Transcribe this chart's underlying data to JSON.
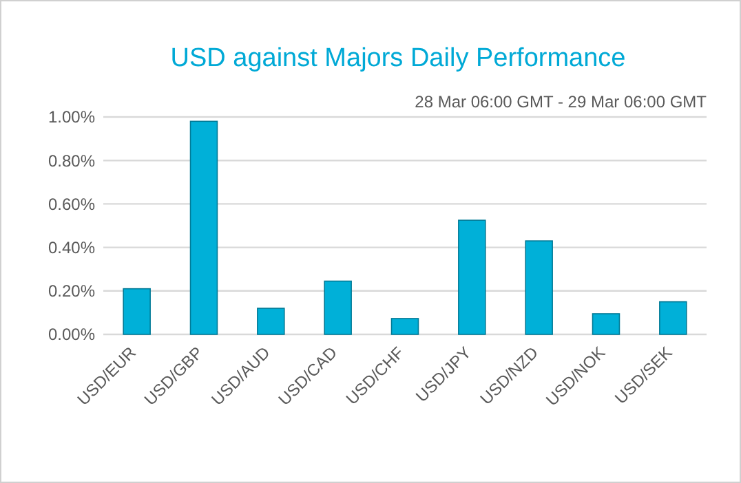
{
  "chart_data": {
    "type": "bar",
    "title": "USD against Majors Daily Performance",
    "subtitle": "28 Mar 06:00 GMT - 29 Mar 06:00 GMT",
    "categories": [
      "USD/EUR",
      "USD/GBP",
      "USD/AUD",
      "USD/CAD",
      "USD/CHF",
      "USD/JPY",
      "USD/NZD",
      "USD/NOK",
      "USD/SEK"
    ],
    "values": [
      0.21,
      0.98,
      0.12,
      0.245,
      0.073,
      0.525,
      0.43,
      0.095,
      0.15
    ],
    "color": "#00b0d8",
    "ylim": [
      0,
      1
    ],
    "yticks": [
      {
        "value": 0,
        "label": "0.00%"
      },
      {
        "value": 0.2,
        "label": "0.20%"
      },
      {
        "value": 0.4,
        "label": "0.40%"
      },
      {
        "value": 0.6,
        "label": "0.60%"
      },
      {
        "value": 0.8,
        "label": "0.80%"
      },
      {
        "value": 1,
        "label": "1.00%"
      }
    ],
    "grid": true
  }
}
